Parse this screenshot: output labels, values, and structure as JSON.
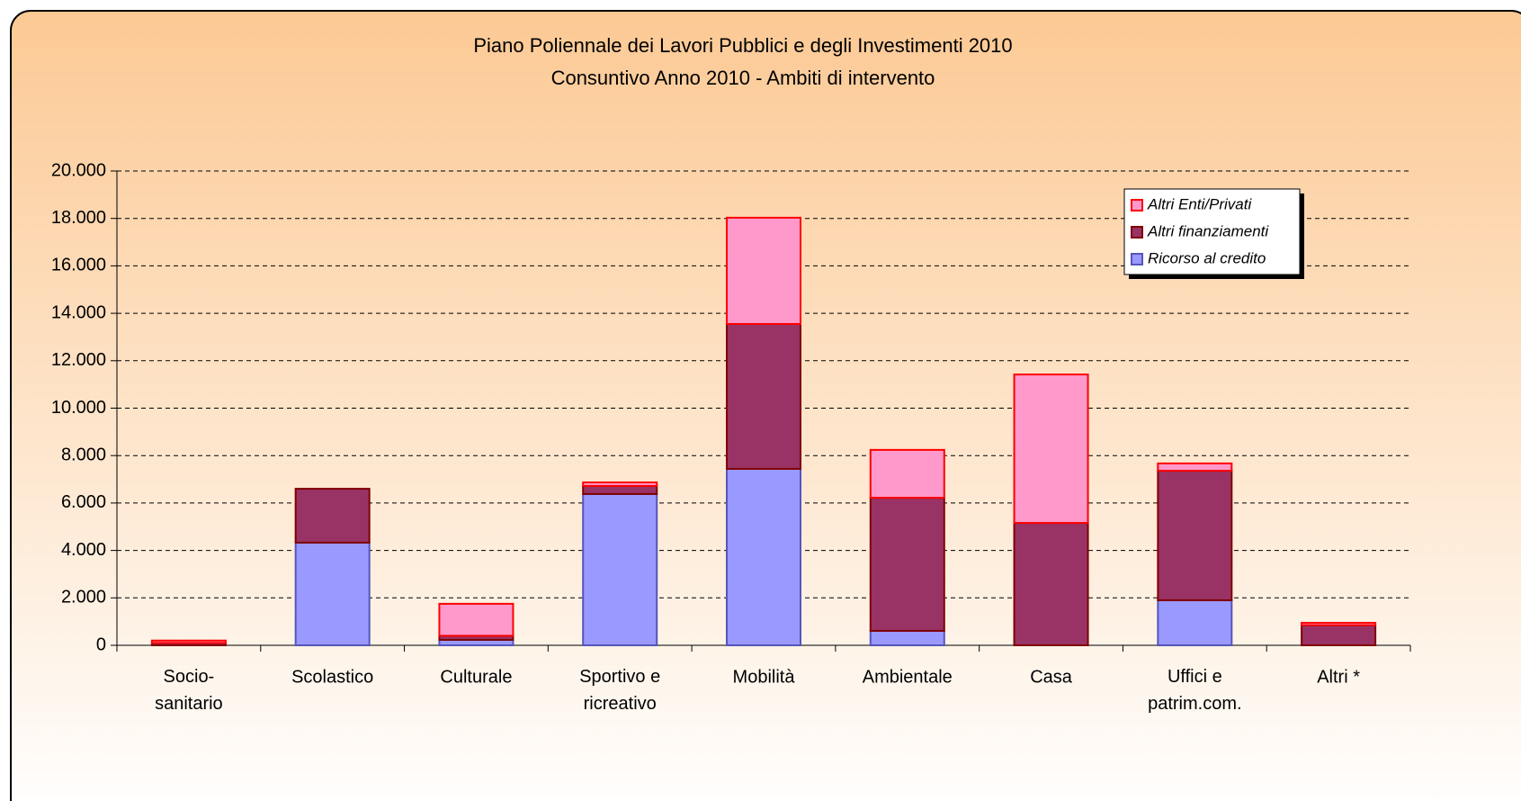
{
  "chart_data": {
    "type": "stacked_bar",
    "title": "Piano Poliennale dei Lavori Pubblici e degli Investimenti 2010",
    "subtitle": "Consuntivo Anno 2010 -  Ambiti di intervento",
    "categories": [
      "Socio-\nsanitario",
      "Scolastico",
      "Culturale",
      "Sportivo e\nricreativo",
      "Mobilità",
      "Ambientale",
      "Casa",
      "Uffici e\npatrim.com.",
      "Altri *"
    ],
    "series": [
      {
        "name": "Ricorso al credito",
        "color": "#9999ff",
        "values": [
          0,
          4330,
          230,
          6380,
          7440,
          610,
          0,
          1900,
          0
        ]
      },
      {
        "name": "Altri finanziamenti",
        "color": "#993366",
        "values": [
          100,
          2270,
          170,
          340,
          6110,
          5610,
          5160,
          5460,
          850
        ]
      },
      {
        "name": "Altri Enti/Privati",
        "color": "#ff99cc",
        "values": [
          100,
          0,
          1350,
          150,
          4480,
          2020,
          6260,
          310,
          100
        ]
      }
    ],
    "ylim": [
      0,
      20000
    ],
    "yticks": [
      0,
      {
        "value": 2000,
        "label": "2.000"
      },
      {
        "value": 4000,
        "label": "4.000"
      },
      {
        "value": 6000,
        "label": "6.000"
      },
      {
        "value": 8000,
        "label": "8.000"
      },
      {
        "value": 10000,
        "label": "10.000"
      },
      {
        "value": 12000,
        "label": "12.000"
      },
      {
        "value": 14000,
        "label": "14.000"
      },
      {
        "value": 16000,
        "label": "16.000"
      },
      {
        "value": 18000,
        "label": "18.000"
      },
      {
        "value": 20000,
        "label": "20.000"
      }
    ],
    "grid": true,
    "legend": "top-right"
  }
}
